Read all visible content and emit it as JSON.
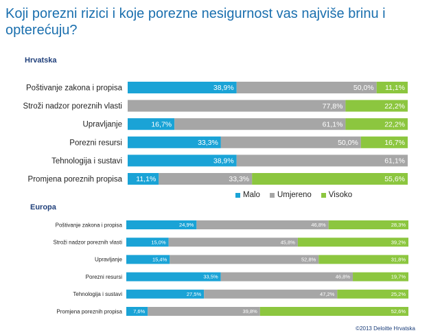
{
  "title": "Koji porezni rizici i koje porezne nesigurnost vas najviše brinu i opterećuju?",
  "legend": {
    "low": "Malo",
    "mid": "Umjereno",
    "high": "Visoko"
  },
  "footer": "©2013 Deloitte Hrvatska",
  "colors": {
    "low": "#1aa3d6",
    "mid": "#a6a6a6",
    "high": "#8cc63f",
    "title": "#1a6fae"
  },
  "chart_data": [
    {
      "type": "bar",
      "stacked": true,
      "orientation": "horizontal",
      "title": "Hrvatska",
      "categories": [
        "Poštivanje zakona i propisa",
        "Stroži nadzor poreznih vlasti",
        "Upravljanje",
        "Porezni resursi",
        "Tehnologija i sustavi",
        "Promjena poreznih propisa"
      ],
      "series": [
        {
          "name": "Malo",
          "values": [
            38.9,
            0,
            16.7,
            33.3,
            38.9,
            11.1
          ],
          "labels": [
            "38,9%",
            "",
            "16,7%",
            "33,3%",
            "38,9%",
            "11,1%"
          ]
        },
        {
          "name": "Umjereno",
          "values": [
            50.0,
            77.8,
            61.1,
            50.0,
            61.1,
            33.3
          ],
          "labels": [
            "50,0%",
            "77,8%",
            "61,1%",
            "50,0%",
            "61,1%",
            "33,3%"
          ]
        },
        {
          "name": "Visoko",
          "values": [
            11.1,
            22.2,
            22.2,
            16.7,
            0,
            55.6
          ],
          "labels": [
            "11,1%",
            "22,2%",
            "22,2%",
            "16,7%",
            "",
            "55,6%"
          ]
        }
      ]
    },
    {
      "type": "bar",
      "stacked": true,
      "orientation": "horizontal",
      "title": "Europa",
      "categories": [
        "Poštivanje zakona i propisa",
        "Stroži nadzor poreznih vlasti",
        "Upravljanje",
        "Porezni resursi",
        "Tehnologija i sustavi",
        "Promjena poreznih propisa"
      ],
      "series": [
        {
          "name": "Malo",
          "values": [
            24.9,
            15.0,
            15.4,
            33.5,
            27.5,
            7.6
          ],
          "labels": [
            "24,9%",
            "15,0%",
            "15,4%",
            "33,5%",
            "27,5%",
            "7,6%"
          ]
        },
        {
          "name": "Umjereno",
          "values": [
            46.8,
            45.8,
            52.8,
            46.8,
            47.2,
            39.8
          ],
          "labels": [
            "46,8%",
            "45,8%",
            "52,8%",
            "46,8%",
            "47,2%",
            "39,8%"
          ]
        },
        {
          "name": "Visoko",
          "values": [
            28.3,
            39.2,
            31.8,
            19.7,
            25.2,
            52.6
          ],
          "labels": [
            "28,3%",
            "39,2%",
            "31,8%",
            "19,7%",
            "25,2%",
            "52,6%"
          ]
        }
      ]
    }
  ]
}
